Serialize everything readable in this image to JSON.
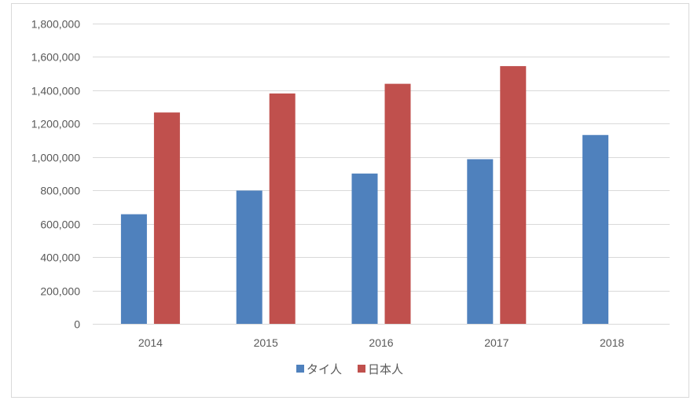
{
  "chart_data": {
    "type": "bar",
    "title": "",
    "xlabel": "",
    "ylabel": "",
    "categories": [
      "2014",
      "2015",
      "2016",
      "2017",
      "2018"
    ],
    "series": [
      {
        "name": "タイ人",
        "color": "#4f81bd",
        "values": [
          657000,
          799000,
          901000,
          987000,
          1132000
        ]
      },
      {
        "name": "日本人",
        "color": "#c0504d",
        "values": [
          1267000,
          1381000,
          1439000,
          1545000,
          null
        ]
      }
    ],
    "ylim": [
      0,
      1800000
    ],
    "yticks": [
      0,
      200000,
      400000,
      600000,
      800000,
      1000000,
      1200000,
      1400000,
      1600000,
      1800000
    ],
    "ytick_labels": [
      "0",
      "200,000",
      "400,000",
      "600,000",
      "800,000",
      "1,000,000",
      "1,200,000",
      "1,400,000",
      "1,600,000",
      "1,800,000"
    ],
    "grid": true,
    "legend": "bottom",
    "gridline_color": "#d9d9d9"
  }
}
